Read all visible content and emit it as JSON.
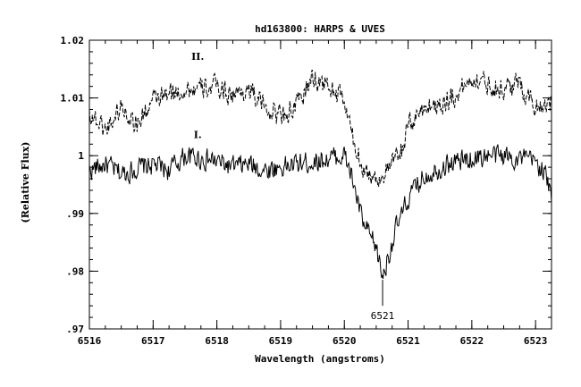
{
  "chart_data": {
    "type": "line",
    "title": "hd163800: HARPS & UVES",
    "xlabel": "Wavelength (angstroms)",
    "ylabel": "(Relative Flux)",
    "xlim": [
      6516.0,
      6523.25
    ],
    "ylim": [
      0.97,
      1.02
    ],
    "x_ticks": [
      6516,
      6517,
      6518,
      6519,
      6520,
      6521,
      6522,
      6523
    ],
    "x_tick_labels": [
      "6516",
      "6517",
      "6518",
      "6519",
      "6520",
      "6521",
      "6522",
      "6523"
    ],
    "y_ticks": [
      0.97,
      0.98,
      0.99,
      1.0,
      1.01,
      1.02
    ],
    "y_tick_labels": [
      ".97",
      ".98",
      ".99",
      "1",
      "1.01",
      "1.02"
    ],
    "grid": false,
    "series": [
      {
        "name": "I.",
        "style": "solid",
        "x": [
          6516.0,
          6516.25,
          6516.5,
          6516.75,
          6517.0,
          6517.25,
          6517.5,
          6517.75,
          6518.0,
          6518.25,
          6518.5,
          6518.75,
          6519.0,
          6519.25,
          6519.5,
          6519.75,
          6520.0,
          6520.1,
          6520.2,
          6520.3,
          6520.4,
          6520.5,
          6520.6,
          6520.7,
          6520.8,
          6520.9,
          6521.0,
          6521.25,
          6521.5,
          6521.75,
          6522.0,
          6522.25,
          6522.5,
          6522.75,
          6523.0,
          6523.15,
          6523.25
        ],
        "y": [
          0.9975,
          0.9985,
          0.9968,
          0.9978,
          0.9985,
          0.9975,
          1.0,
          0.9995,
          0.999,
          0.998,
          0.9985,
          0.9975,
          0.998,
          0.9985,
          0.999,
          0.9995,
          1.0,
          0.997,
          0.9925,
          0.988,
          0.986,
          0.984,
          0.979,
          0.983,
          0.987,
          0.9895,
          0.9925,
          0.9965,
          0.998,
          0.999,
          0.9995,
          1.0,
          1.0,
          0.9995,
          0.999,
          0.997,
          0.9925
        ]
      },
      {
        "name": "II.",
        "style": "dashed",
        "x": [
          6516.0,
          6516.25,
          6516.5,
          6516.75,
          6517.0,
          6517.25,
          6517.5,
          6517.75,
          6518.0,
          6518.25,
          6518.5,
          6518.75,
          6519.0,
          6519.25,
          6519.5,
          6519.75,
          6520.0,
          6520.15,
          6520.3,
          6520.45,
          6520.6,
          6520.75,
          6520.9,
          6521.0,
          6521.25,
          6521.5,
          6521.75,
          6522.0,
          6522.25,
          6522.5,
          6522.75,
          6523.0,
          6523.25
        ],
        "y": [
          1.0075,
          1.0045,
          1.0085,
          1.0055,
          1.0095,
          1.0105,
          1.0115,
          1.0115,
          1.012,
          1.0105,
          1.0115,
          1.0085,
          1.007,
          1.0085,
          1.0135,
          1.012,
          1.0095,
          1.002,
          0.998,
          0.996,
          0.9965,
          0.9985,
          1.001,
          1.005,
          1.0085,
          1.009,
          1.0105,
          1.0135,
          1.0125,
          1.0115,
          1.0125,
          1.0085,
          1.0095
        ]
      }
    ],
    "annotations": [
      {
        "text": "6521",
        "x": 6520.6,
        "y": 0.974
      },
      {
        "text": "II.",
        "x": 6517.7,
        "y": 1.0172
      },
      {
        "text": "I.",
        "x": 6517.7,
        "y": 1.0037
      }
    ]
  }
}
